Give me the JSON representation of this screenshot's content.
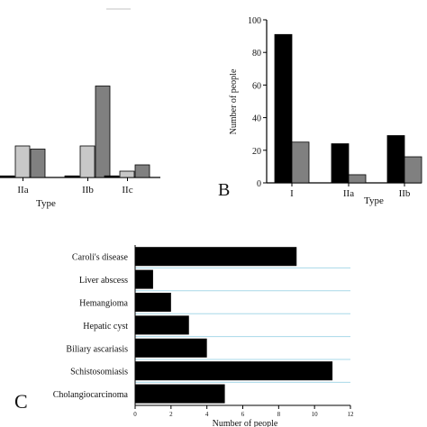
{
  "chart_data": [
    {
      "id": "A",
      "type": "bar",
      "panel_label": "",
      "xlabel": "Type",
      "ylabel": "",
      "categories": [
        "IIa",
        "IIb",
        "IIc"
      ],
      "series": [
        {
          "values": [
            1,
            1,
            1
          ],
          "color": "#000000"
        },
        {
          "values": [
            20,
            20,
            4
          ],
          "color": "#c8c8c8"
        },
        {
          "values": [
            18,
            58,
            8
          ],
          "color": "#808080"
        }
      ],
      "ylim": [
        0,
        100
      ],
      "grid": false
    },
    {
      "id": "B",
      "type": "bar",
      "panel_label": "B",
      "xlabel": "Type",
      "ylabel": "Number of people",
      "categories": [
        "I",
        "IIa",
        "IIb"
      ],
      "series": [
        {
          "values": [
            91,
            24,
            29
          ],
          "color": "#000000"
        },
        {
          "values": [
            25,
            5,
            16
          ],
          "color": "#808080"
        }
      ],
      "ylim": [
        0,
        100
      ],
      "yticks": [
        0,
        20,
        40,
        60,
        80,
        100
      ],
      "grid": false
    },
    {
      "id": "C",
      "type": "bar",
      "orientation": "horizontal",
      "panel_label": "C",
      "xlabel": "Number of people",
      "ylabel": "",
      "categories": [
        "Caroli's disease",
        "Liver abscess",
        "Hemangioma",
        "Hepatic cyst",
        "Biliary ascariasis",
        "Schistosomiasis",
        "Cholangiocarcinoma"
      ],
      "values": [
        9,
        1,
        2,
        3,
        4,
        11,
        5
      ],
      "bar_color": "#000000",
      "grid_color": "#a8d8e8",
      "xlim": [
        0,
        12
      ],
      "xticks": [
        0,
        2,
        4,
        6,
        8,
        10,
        12
      ]
    }
  ]
}
